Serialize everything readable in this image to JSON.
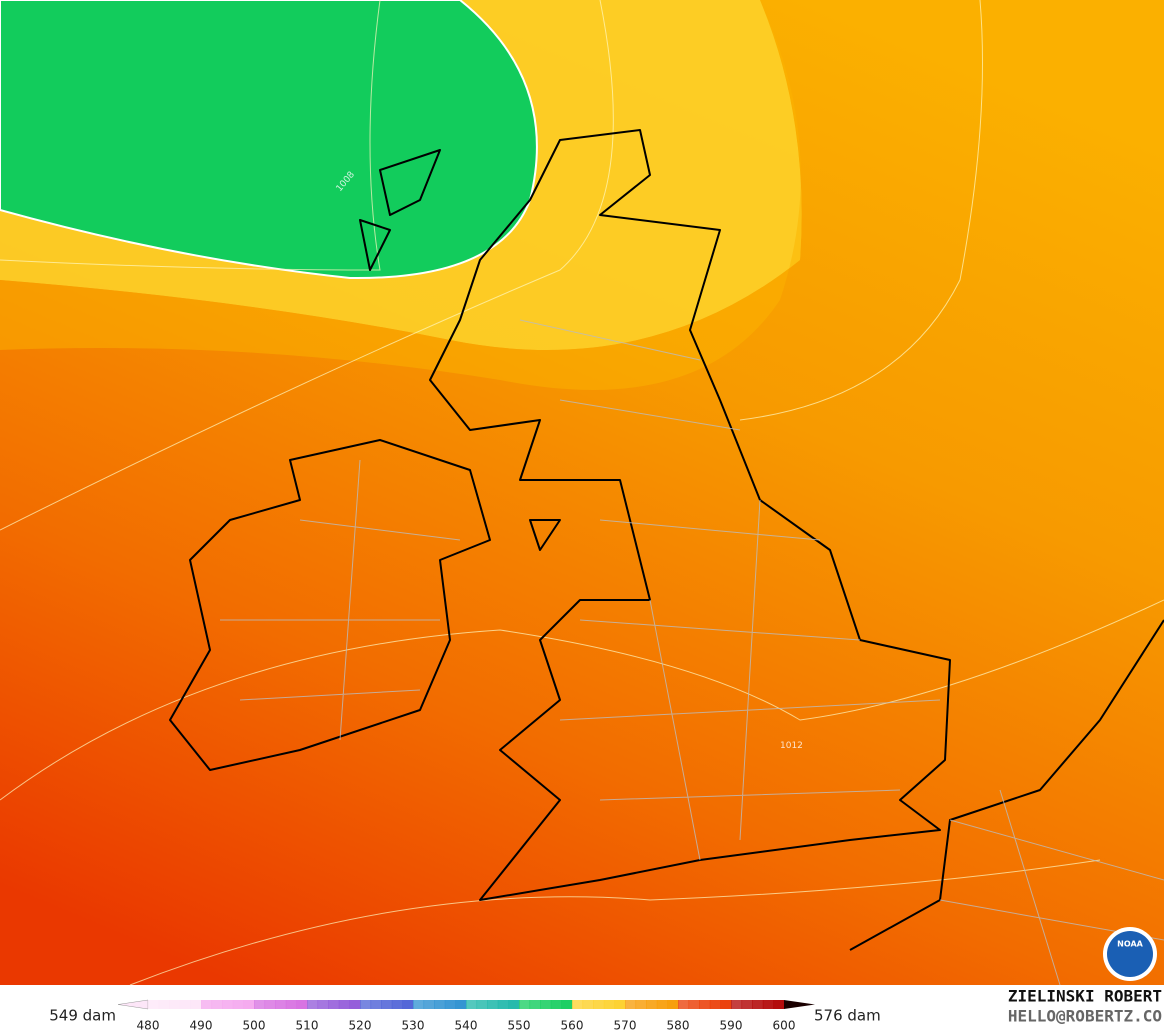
{
  "map": {
    "min_label": "549 dam",
    "max_label": "576 dam",
    "scale_ticks": [
      480,
      490,
      500,
      510,
      520,
      530,
      540,
      550,
      560,
      570,
      580,
      590,
      600
    ],
    "contour_labels": [
      "1008",
      "1012"
    ]
  },
  "credit": {
    "name": "ZIELINSKI ROBERT",
    "email": "HELLO@ROBERTZ.CO"
  },
  "logo": "NOAA"
}
